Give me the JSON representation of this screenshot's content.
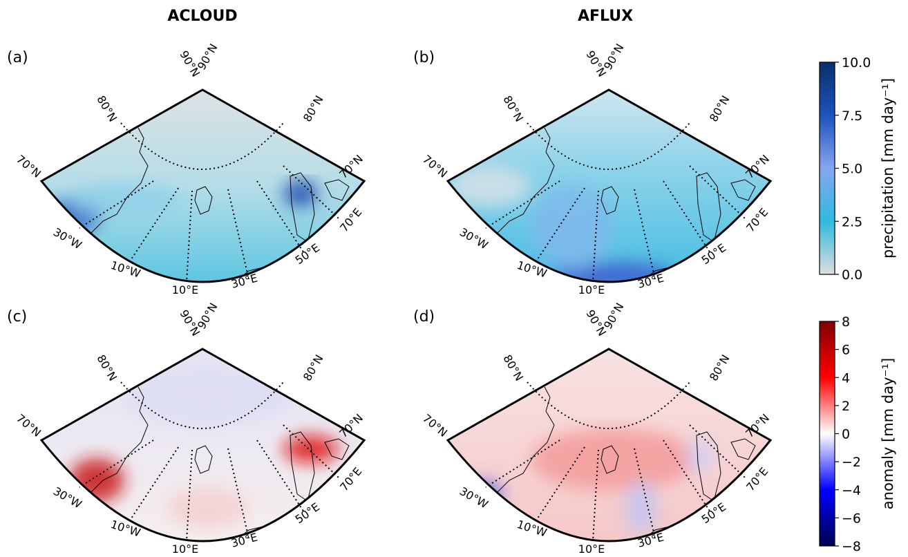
{
  "columns": [
    "ACLOUD",
    "AFLUX"
  ],
  "panels": [
    "(a)",
    "(b)",
    "(c)",
    "(d)"
  ],
  "lat_labels": [
    "90°N",
    "80°N",
    "70°N"
  ],
  "lon_labels": [
    "30°W",
    "10°W",
    "10°E",
    "30°E",
    "50°E",
    "70°E"
  ],
  "colorbars": [
    {
      "label": "precipitation [mm day⁻¹]",
      "ylim": [
        0,
        10
      ],
      "yticks": [
        {
          "value": 0,
          "label": "0.0"
        },
        {
          "value": 2.5,
          "label": "2.5"
        },
        {
          "value": 5,
          "label": "5.0"
        },
        {
          "value": 7.5,
          "label": "7.5"
        },
        {
          "value": 10,
          "label": "10.0"
        }
      ],
      "colors": [
        "#dedede",
        "#2fbade",
        "#86a6ee",
        "#1d52bd",
        "#08306b"
      ]
    },
    {
      "label": "anomaly [mm day⁻¹]",
      "ylim": [
        -8,
        8
      ],
      "yticks": [
        {
          "value": -8,
          "label": "−8"
        },
        {
          "value": -6,
          "label": "−6"
        },
        {
          "value": -4,
          "label": "−4"
        },
        {
          "value": -2,
          "label": "−2"
        },
        0,
        2,
        4,
        6,
        8
      ],
      "colors": [
        "#000050",
        "#0000ff",
        "#ffffff",
        "#ff0000",
        "#800000"
      ]
    }
  ]
}
